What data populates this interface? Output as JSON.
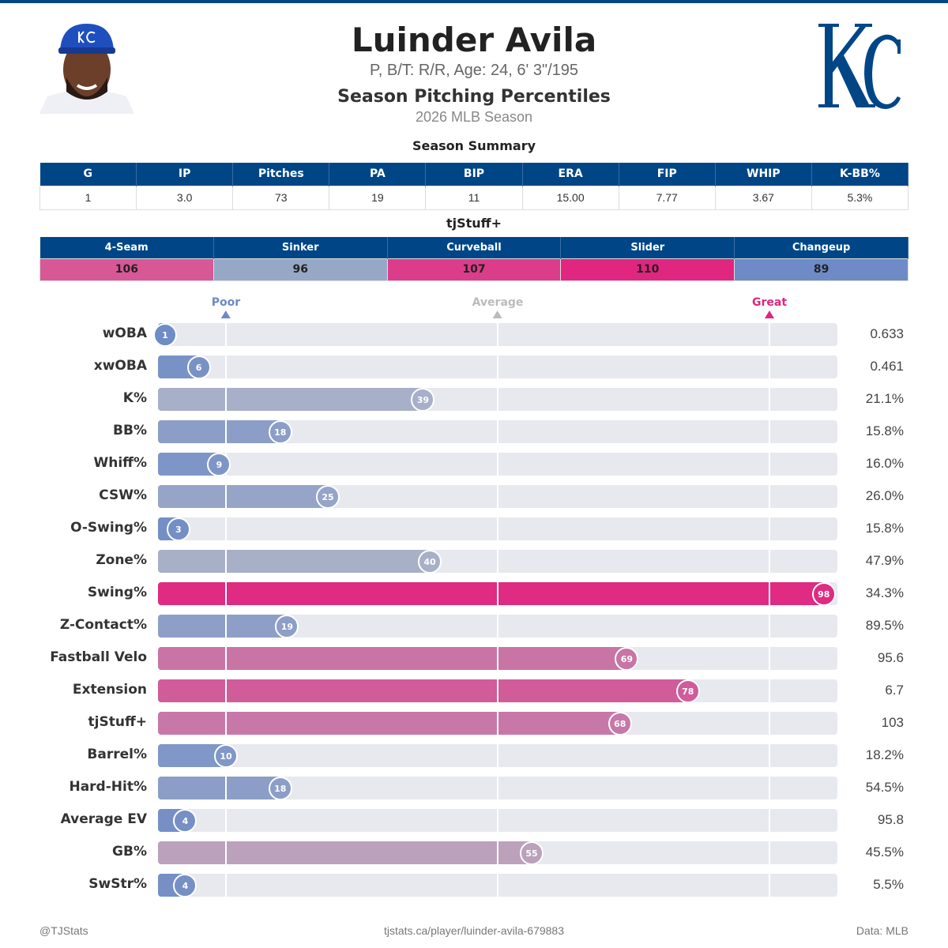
{
  "header": {
    "name": "Luinder Avila",
    "subtitle": "P, B/T: R/R, Age: 24, 6' 3\"/195",
    "title": "Season Pitching Percentiles",
    "season": "2026 MLB Season",
    "team_logo": "KC",
    "team_color": "#004687"
  },
  "summary": {
    "title": "Season Summary",
    "columns": [
      "G",
      "IP",
      "Pitches",
      "PA",
      "BIP",
      "ERA",
      "FIP",
      "WHIP",
      "K-BB%"
    ],
    "values": [
      "1",
      "3.0",
      "73",
      "19",
      "11",
      "15.00",
      "7.77",
      "3.67",
      "5.3%"
    ]
  },
  "tjstuff": {
    "title": "tjStuff+",
    "columns": [
      "4-Seam",
      "Sinker",
      "Curveball",
      "Slider",
      "Changeup"
    ],
    "values": [
      "106",
      "96",
      "107",
      "110",
      "89"
    ],
    "colors": [
      "#d85896",
      "#97a7c6",
      "#db3d8a",
      "#e0267f",
      "#6e8bc7"
    ]
  },
  "markers": {
    "poor": "Poor",
    "average": "Average",
    "great": "Great"
  },
  "chart_data": {
    "type": "bar",
    "orientation": "horizontal",
    "xlim": [
      0,
      100
    ],
    "reference_lines": [
      10,
      50,
      90
    ],
    "colors": {
      "low": "#6c8ac6",
      "mid": "#b4b8c8",
      "high": "#e0267f"
    },
    "categories": [
      "wOBA",
      "xwOBA",
      "K%",
      "BB%",
      "Whiff%",
      "CSW%",
      "O-Swing%",
      "Zone%",
      "Swing%",
      "Z-Contact%",
      "Fastball Velo",
      "Extension",
      "tjStuff+",
      "Barrel%",
      "Hard-Hit%",
      "Average EV",
      "GB%",
      "SwStr%"
    ],
    "percentiles": [
      1,
      6,
      39,
      18,
      9,
      25,
      3,
      40,
      98,
      19,
      69,
      78,
      68,
      10,
      18,
      4,
      55,
      4
    ],
    "values": [
      "0.633",
      "0.461",
      "21.1%",
      "15.8%",
      "16.0%",
      "26.0%",
      "15.8%",
      "47.9%",
      "34.3%",
      "89.5%",
      "95.6",
      "6.7",
      "103",
      "18.2%",
      "54.5%",
      "95.8",
      "45.5%",
      "5.5%"
    ]
  },
  "footer": {
    "left": "@TJStats",
    "center": "tjstats.ca/player/luinder-avila-679883",
    "right": "Data: MLB"
  }
}
